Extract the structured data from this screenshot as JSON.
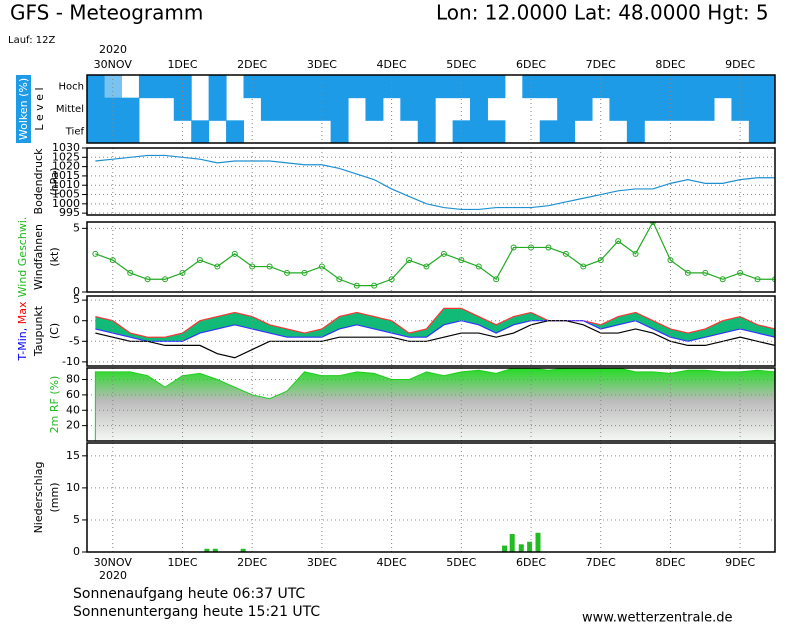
{
  "header": {
    "title": "GFS - Meteogramm",
    "location": "Lon: 12.0000 Lat: 48.0000 Hgt: 5",
    "run": "Lauf: 12Z"
  },
  "footer": {
    "sunrise": "Sonnenaufgang heute 06:37 UTC",
    "sunset": "Sonnenuntergang heute 15:21 UTC",
    "source": "www.wetterzentrale.de"
  },
  "time_axis": {
    "year": "2020",
    "xlim": [
      -0.37,
      9.5
    ],
    "xticks": [
      {
        "value": 0,
        "label": "30NOV"
      },
      {
        "value": 1,
        "label": "1DEC"
      },
      {
        "value": 2,
        "label": "2DEC"
      },
      {
        "value": 3,
        "label": "3DEC"
      },
      {
        "value": 4,
        "label": "4DEC"
      },
      {
        "value": 5,
        "label": "5DEC"
      },
      {
        "value": 6,
        "label": "6DEC"
      },
      {
        "value": 7,
        "label": "7DEC"
      },
      {
        "value": 8,
        "label": "8DEC"
      },
      {
        "value": 9,
        "label": "9DEC"
      }
    ],
    "x": [
      -0.25,
      0,
      0.25,
      0.5,
      0.75,
      1,
      1.25,
      1.5,
      1.75,
      2,
      2.25,
      2.5,
      2.75,
      3,
      3.25,
      3.5,
      3.75,
      4,
      4.25,
      4.5,
      4.75,
      5,
      5.25,
      5.5,
      5.75,
      6,
      6.25,
      6.5,
      6.75,
      7,
      7.25,
      7.5,
      7.75,
      8,
      8.25,
      8.5,
      8.75,
      9,
      9.25,
      9.5
    ]
  },
  "chart_data": [
    {
      "type": "heatmap",
      "ylabel": [
        [
          {
            "text": "Wolken (%)",
            "color": "#ffffff"
          }
        ],
        "L e v e l"
      ],
      "color": "#1e9be6",
      "series": [
        {
          "name": "Hoch",
          "values": [
            100,
            60,
            0,
            100,
            100,
            100,
            0,
            100,
            0,
            100,
            100,
            100,
            100,
            100,
            100,
            100,
            100,
            100,
            100,
            100,
            100,
            100,
            100,
            100,
            0,
            100,
            100,
            100,
            100,
            100,
            100,
            100,
            100,
            100,
            100,
            100,
            100,
            100,
            100,
            100
          ]
        },
        {
          "name": "Mittel",
          "values": [
            100,
            100,
            100,
            0,
            0,
            100,
            0,
            100,
            0,
            0,
            100,
            100,
            100,
            100,
            100,
            0,
            100,
            0,
            100,
            100,
            0,
            0,
            100,
            0,
            0,
            0,
            0,
            100,
            100,
            0,
            100,
            100,
            100,
            100,
            100,
            100,
            0,
            100,
            100,
            100
          ]
        },
        {
          "name": "Tief",
          "values": [
            100,
            100,
            100,
            0,
            0,
            0,
            100,
            0,
            100,
            0,
            0,
            0,
            0,
            0,
            100,
            0,
            0,
            0,
            0,
            100,
            0,
            100,
            100,
            100,
            0,
            0,
            100,
            100,
            0,
            0,
            0,
            100,
            0,
            0,
            0,
            0,
            0,
            0,
            100,
            100
          ]
        }
      ]
    },
    {
      "type": "line",
      "ylabel": [
        "Bodendruck",
        "(hPa)"
      ],
      "ylim": [
        994,
        1030
      ],
      "yticks": [
        995,
        1000,
        1005,
        1010,
        1015,
        1020,
        1025,
        1030
      ],
      "grid": true,
      "series": [
        {
          "color": "#1e90d0",
          "values": [
            1023,
            1024,
            1025,
            1026,
            1026,
            1025,
            1024,
            1022,
            1023,
            1023,
            1023,
            1022,
            1021,
            1021,
            1019,
            1016,
            1013,
            1008,
            1004,
            1000,
            998,
            997,
            997,
            998,
            998,
            998,
            999,
            1001,
            1003,
            1005,
            1007,
            1008,
            1008,
            1011,
            1013,
            1011,
            1011,
            1013,
            1014,
            1014
          ]
        }
      ]
    },
    {
      "type": "line",
      "ylabel": [
        [
          {
            "text": "Wind Geschwi.",
            "color": "#22bb22"
          }
        ],
        "Windfahnen",
        "(kt)"
      ],
      "ylim": [
        0,
        5.5
      ],
      "yticks": [
        0,
        5
      ],
      "grid": true,
      "markers": true,
      "series": [
        {
          "color": "#22aa22",
          "values": [
            3,
            2.5,
            1.5,
            1,
            1,
            1.5,
            2.5,
            2,
            3,
            2,
            2,
            1.5,
            1.5,
            2,
            1,
            0.5,
            0.5,
            1,
            2.5,
            2,
            3,
            2.5,
            2,
            1,
            3.5,
            3.5,
            3.5,
            3,
            2,
            2.5,
            4,
            3,
            5.5,
            2.5,
            1.5,
            1.5,
            1,
            1.5,
            1,
            1
          ]
        }
      ]
    },
    {
      "type": "band",
      "ylabel": [
        [
          {
            "text": "T-Min,",
            "color": "#0000ff"
          },
          {
            "text": " Max",
            "color": "#ff0000"
          }
        ],
        "Taupunkt",
        "(C)"
      ],
      "ylim": [
        -11,
        6
      ],
      "yticks": [
        -10,
        -5,
        0,
        5
      ],
      "grid": true,
      "fill": "#11bb77",
      "series": [
        {
          "color": "#ff3333",
          "values": [
            1,
            0,
            -3,
            -4,
            -4,
            -3,
            0,
            1,
            2,
            1,
            -1,
            -2,
            -3,
            -2,
            1,
            2,
            1,
            0,
            -3,
            -2,
            3,
            3,
            1,
            -1,
            1,
            2,
            0,
            0,
            0,
            -1,
            1,
            2,
            0,
            -2,
            -3,
            -2,
            0,
            1,
            -1,
            -2
          ]
        },
        {
          "color": "#3333ff",
          "values": [
            -2,
            -3,
            -4,
            -5,
            -5,
            -5,
            -3,
            -2,
            -1,
            -2,
            -3,
            -4,
            -4,
            -4,
            -2,
            -1,
            -2,
            -3,
            -4,
            -4,
            -1,
            0,
            -1,
            -3,
            -1,
            0,
            0,
            0,
            0,
            -2,
            -1,
            0,
            -2,
            -4,
            -5,
            -4,
            -3,
            -2,
            -3,
            -4
          ]
        },
        {
          "color": "#000000",
          "values": [
            -3,
            -4,
            -5,
            -5,
            -6,
            -6,
            -6,
            -8,
            -9,
            -7,
            -5,
            -5,
            -5,
            -5,
            -4,
            -4,
            -4,
            -4,
            -5,
            -5,
            -4,
            -3,
            -3,
            -4,
            -3,
            -1,
            0,
            0,
            -1,
            -3,
            -3,
            -2,
            -3,
            -5,
            -6,
            -6,
            -5,
            -4,
            -5,
            -6
          ]
        }
      ]
    },
    {
      "type": "area",
      "ylabel": [
        [
          {
            "text": "2m RF (%)",
            "color": "#22bb22"
          }
        ]
      ],
      "ylim": [
        0,
        95
      ],
      "yticks": [
        20,
        40,
        60,
        80
      ],
      "grid": true,
      "series": [
        {
          "color": "#22cc22",
          "values": [
            90,
            90,
            90,
            85,
            70,
            85,
            88,
            80,
            70,
            60,
            55,
            65,
            90,
            85,
            85,
            90,
            88,
            80,
            80,
            90,
            85,
            90,
            92,
            88,
            95,
            95,
            92,
            95,
            95,
            95,
            95,
            90,
            90,
            88,
            92,
            92,
            90,
            90,
            92,
            90
          ]
        }
      ]
    },
    {
      "type": "bar",
      "ylabel": [
        "Niederschlag",
        "(mm)"
      ],
      "ylim": [
        0,
        17
      ],
      "yticks": [
        0,
        5,
        10,
        15
      ],
      "grid": true,
      "color": "#22bb22",
      "x": [
        1.35,
        1.47,
        1.87,
        5.62,
        5.73,
        5.86,
        5.98,
        6.1
      ],
      "values": [
        0.5,
        0.5,
        0.5,
        1,
        2.8,
        1.2,
        1.6,
        3
      ]
    }
  ]
}
